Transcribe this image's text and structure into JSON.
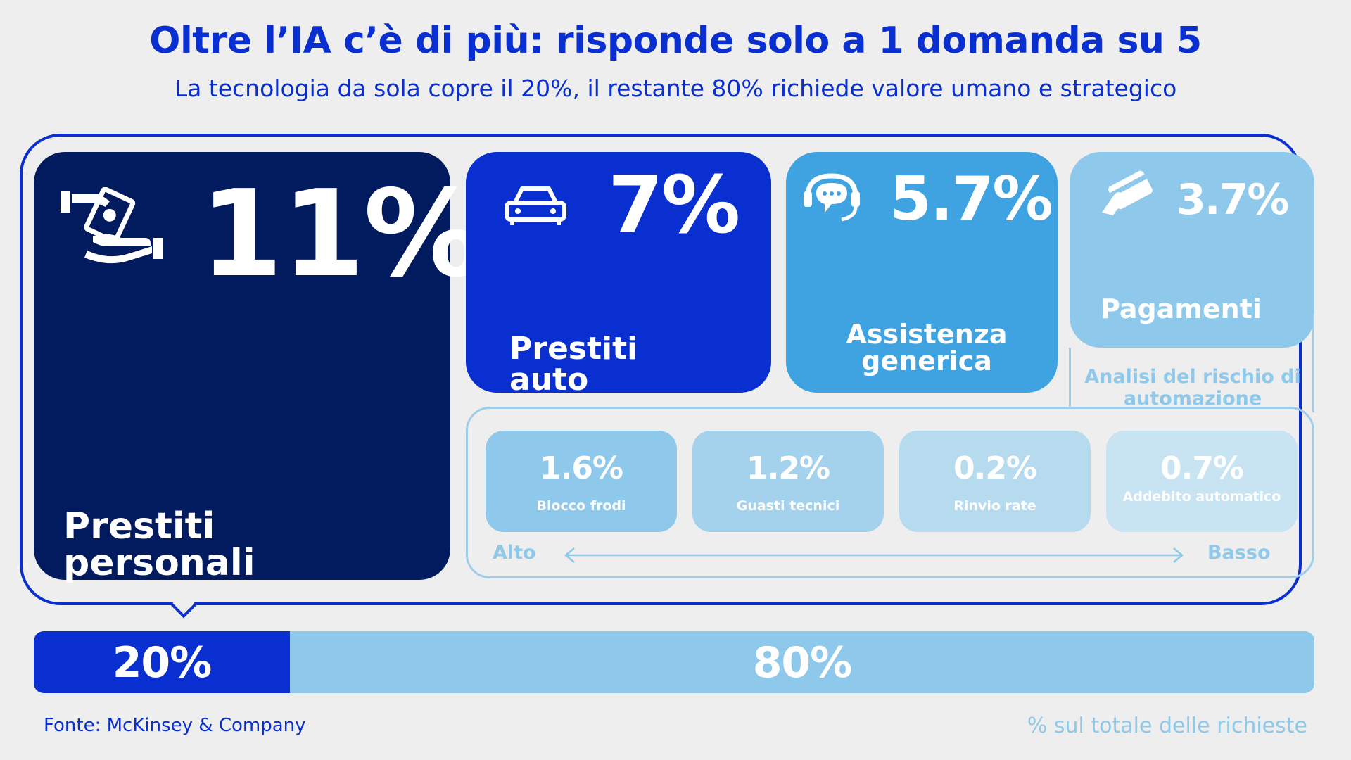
{
  "title": "Oltre l’IA c’è di più: risponde solo a 1 domanda su 5",
  "subtitle": "La tecnologia da sola copre il 20%, il restante 80% richiede valore umano e strategico",
  "chart_data": {
    "type": "treemap",
    "categories": [
      {
        "label": "Prestiti personali",
        "value": 11,
        "display": "11%",
        "icon": "hand-money-icon"
      },
      {
        "label": "Prestiti auto",
        "value": 7,
        "display": "7%",
        "icon": "car-icon"
      },
      {
        "label": "Assistenza generica",
        "value": 5.7,
        "display": "5.7%",
        "icon": "headset-chat-icon"
      },
      {
        "label": "Pagamenti",
        "value": 3.7,
        "display": "3.7%",
        "icon": "card-hand-icon"
      }
    ],
    "risk_analysis": {
      "title": "Analisi del rischio di automazione",
      "items": [
        {
          "label": "Blocco frodi",
          "value": 1.6,
          "display": "1.6%"
        },
        {
          "label": "Guasti tecnici",
          "value": 1.2,
          "display": "1.2%"
        },
        {
          "label": "Rinvio rate",
          "value": 0.2,
          "display": "0.2%"
        },
        {
          "label": "Addebito automatico",
          "value": 0.7,
          "display": "0.7%"
        }
      ],
      "scale_high": "Alto",
      "scale_low": "Basso"
    },
    "split": [
      {
        "label": "20%",
        "value": 20,
        "color": "#0a2fd0"
      },
      {
        "label": "80%",
        "value": 80,
        "color": "#8ec8ea"
      }
    ],
    "unit_note": "% sul totale delle richieste"
  },
  "source": "Fonte: McKinsey & Company",
  "colors": {
    "primary": "#0a2fd0",
    "navy": "#021a5e",
    "mid": "#3ea3e0",
    "light": "#8ec8ea"
  }
}
